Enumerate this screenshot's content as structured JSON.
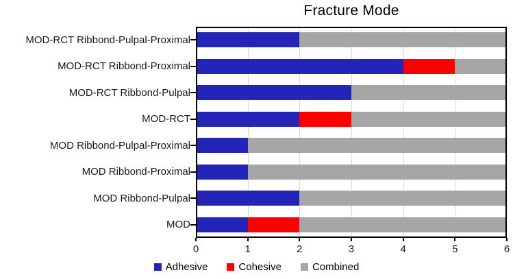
{
  "chart_data": {
    "type": "bar",
    "orientation": "horizontal",
    "stacked": true,
    "title": "Fracture Mode",
    "categories": [
      "MOD-RCT Ribbond-Pulpal-Proximal",
      "MOD-RCT Ribbond-Proximal",
      "MOD-RCT Ribbond-Pulpal",
      "MOD-RCT",
      "MOD Ribbond-Pulpal-Proximal",
      "MOD Ribbond-Proximal",
      "MOD Ribbond-Pulpal",
      "MOD"
    ],
    "series": [
      {
        "name": "Adhesive",
        "color": "#2424B8",
        "values": [
          2,
          4,
          3,
          2,
          1,
          1,
          2,
          1
        ]
      },
      {
        "name": "Cohesive",
        "color": "#FF0000",
        "values": [
          0,
          1,
          0,
          1,
          0,
          0,
          0,
          1
        ]
      },
      {
        "name": "Combined",
        "color": "#A6A6A6",
        "values": [
          4,
          1,
          3,
          3,
          5,
          5,
          4,
          4
        ]
      }
    ],
    "xlim": [
      0,
      6
    ],
    "x_ticks": [
      "0",
      "1",
      "2",
      "3",
      "4",
      "5",
      "6"
    ],
    "grid": "vertical",
    "gridline_color": "#D9D9D9",
    "axis_color": "#000000",
    "legend_position": "bottom",
    "legend": [
      {
        "label": "Adhesive",
        "color": "#2424B8"
      },
      {
        "label": "Cohesive",
        "color": "#FF0000"
      },
      {
        "label": "Combined",
        "color": "#A6A6A6"
      }
    ]
  }
}
